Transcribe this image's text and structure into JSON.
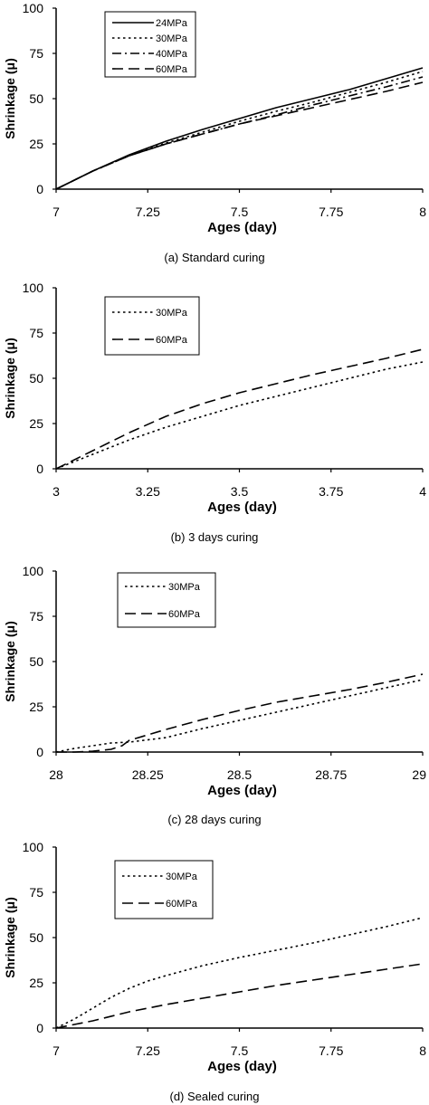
{
  "chart_data": [
    {
      "type": "line",
      "caption": "(a) Standard curing",
      "xlabel": "Ages (day)",
      "ylabel": "Shrinkage (μ)",
      "xlim": [
        7,
        8
      ],
      "ylim": [
        0,
        100
      ],
      "xticks": [
        "7",
        "7.25",
        "7.5",
        "7.75",
        "8"
      ],
      "yticks": [
        "0",
        "25",
        "50",
        "75",
        "100"
      ],
      "legend": {
        "placement": "top-left"
      },
      "series": [
        {
          "name": "24MPa",
          "style": "solid",
          "x": [
            7,
            7.1,
            7.2,
            7.3,
            7.4,
            7.5,
            7.6,
            7.7,
            7.8,
            7.9,
            8
          ],
          "y": [
            0,
            10,
            19,
            26.5,
            33,
            39,
            45,
            50,
            55,
            61,
            67
          ]
        },
        {
          "name": "30MPa",
          "style": "dotted",
          "x": [
            7,
            7.1,
            7.2,
            7.3,
            7.4,
            7.5,
            7.6,
            7.7,
            7.8,
            7.9,
            8
          ],
          "y": [
            0,
            10,
            18.5,
            25.5,
            31.5,
            37.5,
            43,
            48,
            53.5,
            59,
            65
          ]
        },
        {
          "name": "40MPa",
          "style": "dashdot",
          "x": [
            7,
            7.1,
            7.2,
            7.3,
            7.4,
            7.5,
            7.6,
            7.7,
            7.8,
            7.9,
            8
          ],
          "y": [
            0,
            10,
            18.5,
            25,
            30.5,
            36,
            41,
            46.5,
            51.5,
            56.5,
            62
          ]
        },
        {
          "name": "60MPa",
          "style": "dashed",
          "x": [
            7,
            7.1,
            7.2,
            7.3,
            7.4,
            7.5,
            7.6,
            7.7,
            7.8,
            7.9,
            8
          ],
          "y": [
            0,
            10,
            18.5,
            25,
            30.5,
            36,
            40.5,
            45,
            49.5,
            54,
            59
          ]
        }
      ]
    },
    {
      "type": "line",
      "caption": "(b) 3 days curing",
      "xlabel": "Ages (day)",
      "ylabel": "Shrinkage (μ)",
      "xlim": [
        3,
        4
      ],
      "ylim": [
        0,
        100
      ],
      "xticks": [
        "3",
        "3.25",
        "3.5",
        "3.75",
        "4"
      ],
      "yticks": [
        "0",
        "25",
        "50",
        "75",
        "100"
      ],
      "legend": {
        "placement": "top-left"
      },
      "series": [
        {
          "name": "30MPa",
          "style": "dotted",
          "x": [
            3,
            3.1,
            3.2,
            3.3,
            3.4,
            3.5,
            3.6,
            3.7,
            3.8,
            3.9,
            4
          ],
          "y": [
            0,
            8,
            16,
            23,
            29,
            35,
            40,
            45,
            50,
            55,
            59
          ]
        },
        {
          "name": "60MPa",
          "style": "dashed",
          "x": [
            3,
            3.1,
            3.2,
            3.3,
            3.4,
            3.5,
            3.6,
            3.7,
            3.8,
            3.9,
            4
          ],
          "y": [
            0,
            10,
            20,
            29,
            36,
            42,
            47,
            52,
            56.5,
            61,
            66
          ]
        }
      ]
    },
    {
      "type": "line",
      "caption": "(c) 28 days curing",
      "xlabel": "Ages (day)",
      "ylabel": "Shrinkage (μ)",
      "xlim": [
        28,
        29
      ],
      "ylim": [
        0,
        100
      ],
      "xticks": [
        "28",
        "28.25",
        "28.5",
        "28.75",
        "29"
      ],
      "yticks": [
        "0",
        "25",
        "50",
        "75",
        "100"
      ],
      "legend": {
        "placement": "top-left"
      },
      "series": [
        {
          "name": "30MPa",
          "style": "dotted",
          "x": [
            28,
            28.05,
            28.1,
            28.15,
            28.2,
            28.3,
            28.4,
            28.5,
            28.6,
            28.7,
            28.8,
            28.9,
            29
          ],
          "y": [
            0,
            2,
            3.5,
            5,
            5.5,
            8,
            13,
            17.5,
            22,
            26.5,
            31,
            35.5,
            40
          ]
        },
        {
          "name": "60MPa",
          "style": "dashed",
          "x": [
            28,
            28.05,
            28.1,
            28.15,
            28.18,
            28.2,
            28.3,
            28.4,
            28.5,
            28.6,
            28.7,
            28.8,
            28.9,
            29
          ],
          "y": [
            0,
            0,
            0.5,
            1.5,
            3.5,
            6.5,
            12.5,
            18,
            23,
            27.5,
            31,
            34.5,
            38.5,
            43
          ]
        }
      ]
    },
    {
      "type": "line",
      "caption": "(d) Sealed curing",
      "xlabel": "Ages (day)",
      "ylabel": "Shrinkage (μ)",
      "xlim": [
        7,
        8
      ],
      "ylim": [
        0,
        100
      ],
      "xticks": [
        "7",
        "7.25",
        "7.5",
        "7.75",
        "8"
      ],
      "yticks": [
        "0",
        "25",
        "50",
        "75",
        "100"
      ],
      "legend": {
        "placement": "top-left"
      },
      "series": [
        {
          "name": "30MPa",
          "style": "dotted",
          "x": [
            7,
            7.05,
            7.1,
            7.15,
            7.2,
            7.25,
            7.3,
            7.4,
            7.5,
            7.6,
            7.7,
            7.8,
            7.9,
            8
          ],
          "y": [
            0,
            5,
            11,
            17,
            22,
            26,
            29,
            34.5,
            39,
            43,
            47,
            51.5,
            56,
            61
          ]
        },
        {
          "name": "60MPa",
          "style": "dashed",
          "x": [
            7,
            7.1,
            7.2,
            7.3,
            7.4,
            7.5,
            7.6,
            7.7,
            7.8,
            7.9,
            8
          ],
          "y": [
            0,
            4,
            9,
            13,
            16.5,
            20,
            23.5,
            26.5,
            29.5,
            32.5,
            35.5
          ]
        }
      ]
    }
  ]
}
